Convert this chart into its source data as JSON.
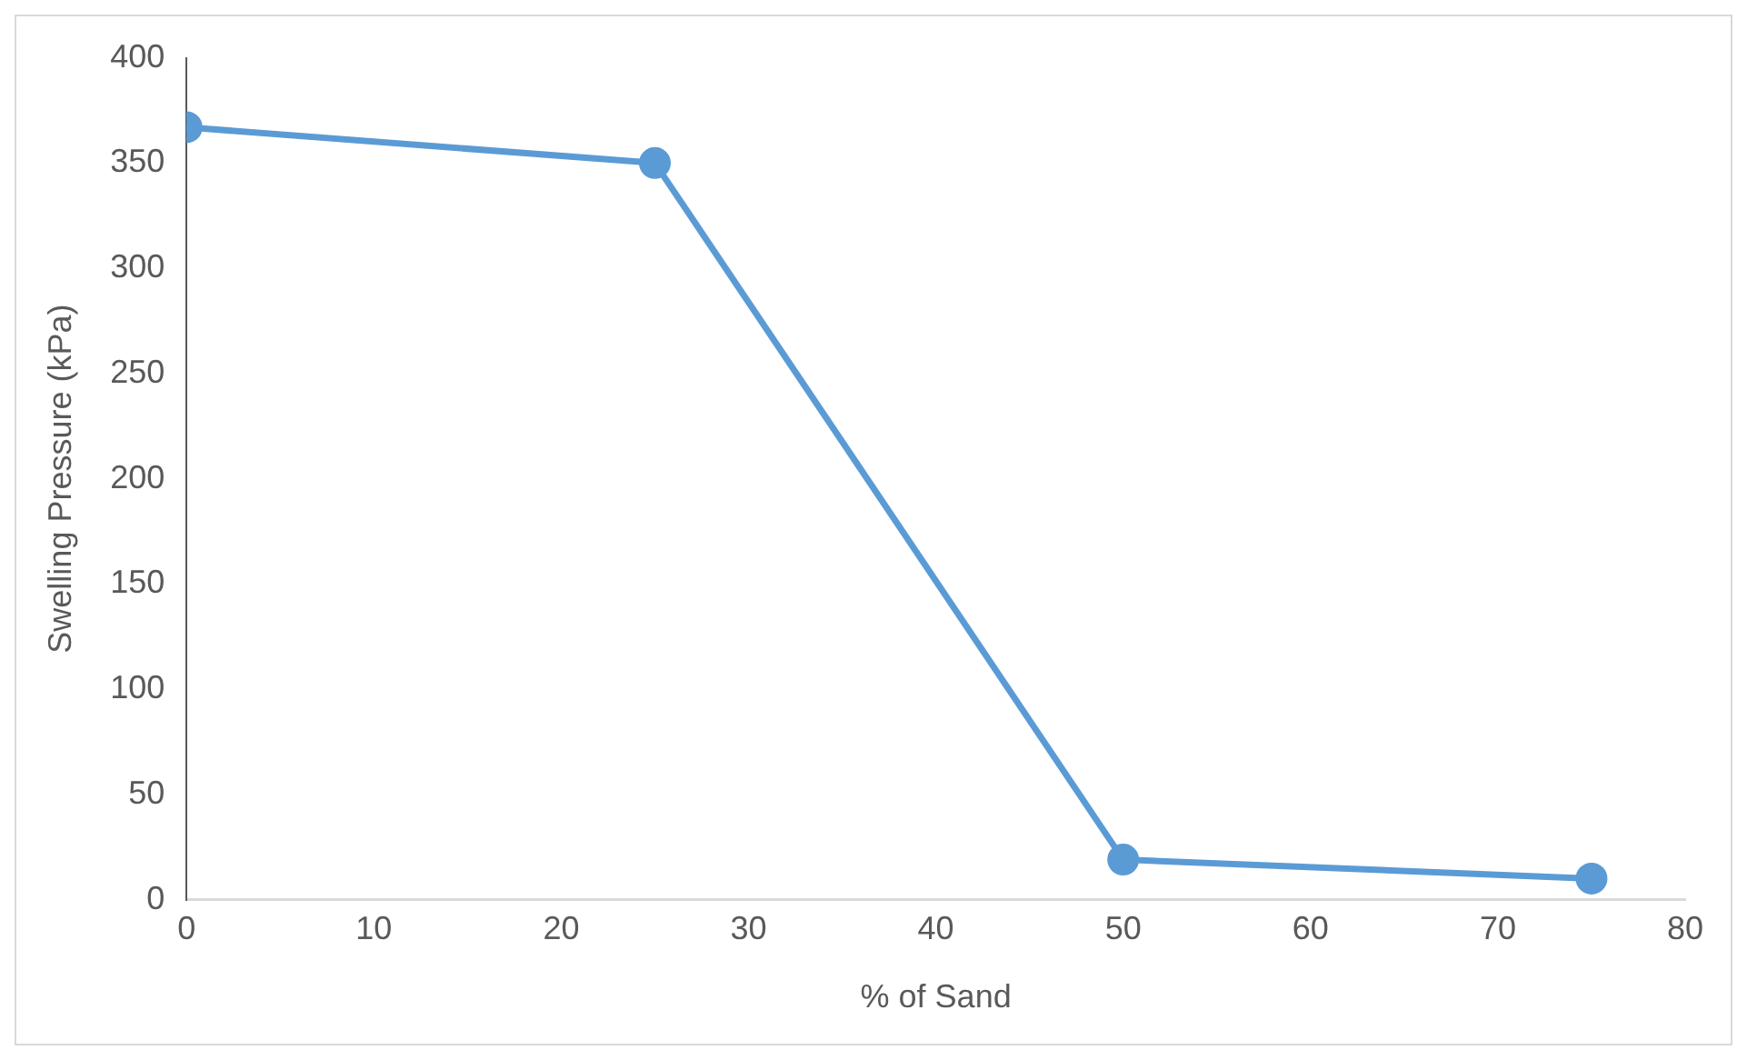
{
  "chart_data": {
    "type": "line",
    "xlabel": "% of Sand",
    "ylabel": "Swelling Pressure (kPa)",
    "x": [
      0,
      25,
      50,
      75
    ],
    "series": [
      {
        "color": "#5b9bd5",
        "values": [
          367,
          350,
          19,
          10
        ]
      }
    ],
    "xlim": [
      0,
      80
    ],
    "xticks": [
      0,
      10,
      20,
      30,
      40,
      50,
      60,
      70,
      80
    ],
    "ylim": [
      0,
      400
    ],
    "yticks": [
      0,
      50,
      100,
      150,
      200,
      250,
      300,
      350,
      400
    ],
    "grid": false,
    "legend": false,
    "marker": "circle",
    "line_style": "solid"
  }
}
